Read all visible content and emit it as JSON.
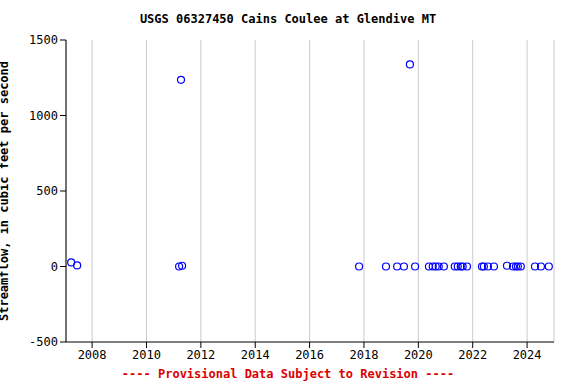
{
  "chart_data": {
    "type": "scatter",
    "title": "USGS 06327450 Cains Coulee at Glendive MT",
    "subtitle": "---- Provisional Data Subject to Revision ----",
    "y_label": "Streamflow, in cubic feet per second",
    "x": [
      2007.23,
      2007.45,
      2011.2,
      2011.27,
      2011.31,
      2017.82,
      2018.81,
      2019.22,
      2019.47,
      2019.69,
      2019.88,
      2020.39,
      2020.53,
      2020.64,
      2020.75,
      2020.94,
      2021.34,
      2021.45,
      2021.56,
      2021.63,
      2021.79,
      2022.34,
      2022.41,
      2022.56,
      2022.78,
      2023.26,
      2023.48,
      2023.59,
      2023.66,
      2023.77,
      2024.29,
      2024.51,
      2024.8
    ],
    "values": [
      27,
      7,
      0,
      1236,
      5,
      0,
      0,
      0,
      0,
      1338,
      0,
      0,
      0,
      0,
      0,
      0,
      0,
      0,
      0,
      0,
      0,
      0,
      0,
      0,
      0,
      5,
      0,
      0,
      0,
      0,
      0,
      0,
      0
    ],
    "color": "#0000ff",
    "marker": "circle-open",
    "xlim": [
      2007.04,
      2024.99
    ],
    "xticks": [
      2008,
      2010,
      2012,
      2014,
      2016,
      2018,
      2020,
      2022,
      2024
    ],
    "ylim": [
      -500,
      1500
    ],
    "yticks": [
      -500,
      0,
      500,
      1000,
      1500
    ],
    "grid": true
  }
}
